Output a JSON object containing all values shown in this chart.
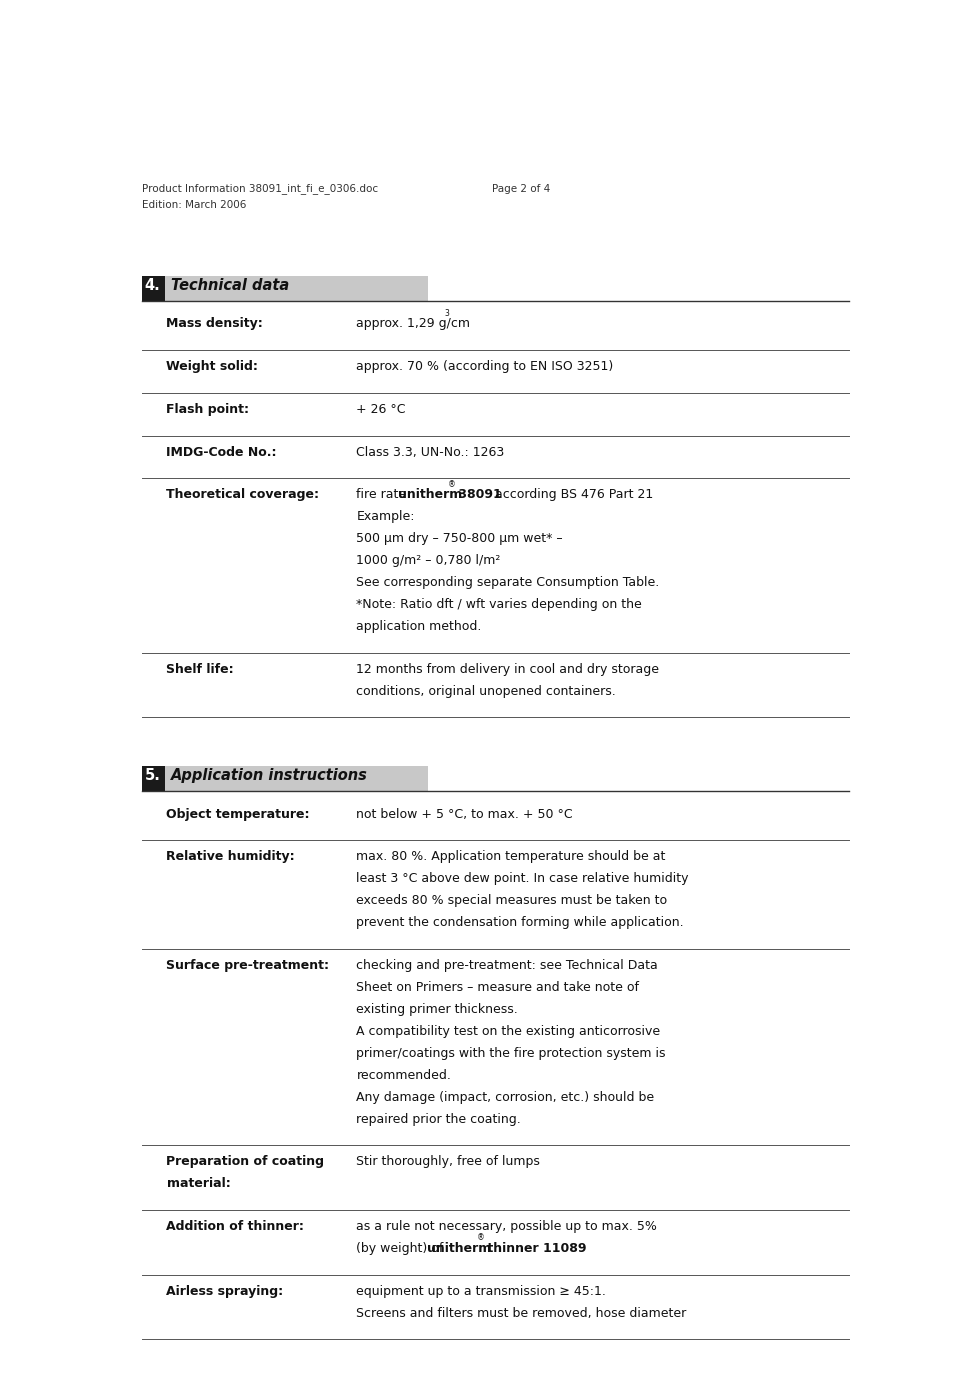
{
  "background_color": "#ffffff",
  "page_width": 9.6,
  "page_height": 13.88,
  "header_left_line1": "Product Information 38091_int_fi_e_0306.doc",
  "header_left_line2": "Edition: March 2006",
  "header_right": "Page 2 of 4",
  "section4_number": "4.",
  "section4_title": "Technical data",
  "section5_number": "5.",
  "section5_title": "Application instructions",
  "rows_section4": [
    {
      "label": "Mass density:",
      "value_multiline": [
        [
          {
            "text": "approx. 1,29 g/cm",
            "bold": false,
            "sup": false
          },
          {
            "text": "3",
            "bold": false,
            "sup": true
          }
        ]
      ]
    },
    {
      "label": "Weight solid:",
      "value_multiline": [
        [
          {
            "text": "approx. 70 % (according to EN ISO 3251)",
            "bold": false,
            "sup": false
          }
        ]
      ]
    },
    {
      "label": "Flash point:",
      "value_multiline": [
        [
          {
            "text": "+ 26 °C",
            "bold": false,
            "sup": false
          }
        ]
      ]
    },
    {
      "label": "IMDG-Code No.:",
      "value_multiline": [
        [
          {
            "text": "Class 3.3, UN-No.: 1263",
            "bold": false,
            "sup": false
          }
        ]
      ]
    },
    {
      "label": "Theoretical coverage:",
      "value_multiline": [
        [
          {
            "text": "fire rate ",
            "bold": false,
            "sup": false
          },
          {
            "text": "unitherm",
            "bold": true,
            "sup": false
          },
          {
            "text": "®",
            "bold": false,
            "sup": true
          },
          {
            "text": " 38091",
            "bold": true,
            "sup": false
          },
          {
            "text": " according BS 476 Part 21",
            "bold": false,
            "sup": false
          }
        ],
        [
          {
            "text": "Example:",
            "bold": false,
            "sup": false
          }
        ],
        [
          {
            "text": "500 μm dry – 750-800 μm wet* –",
            "bold": false,
            "sup": false
          }
        ],
        [
          {
            "text": "1000 g/m² – 0,780 l/m²",
            "bold": false,
            "sup": false
          }
        ],
        [
          {
            "text": "See corresponding separate Consumption Table.",
            "bold": false,
            "sup": false
          }
        ],
        [
          {
            "text": "*Note: Ratio dft / wft varies depending on the",
            "bold": false,
            "sup": false
          }
        ],
        [
          {
            "text": "application method.",
            "bold": false,
            "sup": false
          }
        ]
      ]
    },
    {
      "label": "Shelf life:",
      "value_multiline": [
        [
          {
            "text": "12 months from delivery in cool and dry storage",
            "bold": false,
            "sup": false
          }
        ],
        [
          {
            "text": "conditions, original unopened containers.",
            "bold": false,
            "sup": false
          }
        ]
      ]
    }
  ],
  "rows_section5": [
    {
      "label": "Object temperature:",
      "value_multiline": [
        [
          {
            "text": "not below + 5 °C, to max. + 50 °C",
            "bold": false,
            "sup": false
          }
        ]
      ]
    },
    {
      "label": "Relative humidity:",
      "value_multiline": [
        [
          {
            "text": "max. 80 %. Application temperature should be at",
            "bold": false,
            "sup": false
          }
        ],
        [
          {
            "text": "least 3 °C above dew point. In case relative humidity",
            "bold": false,
            "sup": false
          }
        ],
        [
          {
            "text": "exceeds 80 % special measures must be taken to",
            "bold": false,
            "sup": false
          }
        ],
        [
          {
            "text": "prevent the condensation forming while application.",
            "bold": false,
            "sup": false
          }
        ]
      ]
    },
    {
      "label": "Surface pre-treatment:",
      "value_multiline": [
        [
          {
            "text": "checking and pre-treatment: see Technical Data",
            "bold": false,
            "sup": false
          }
        ],
        [
          {
            "text": "Sheet on Primers – measure and take note of",
            "bold": false,
            "sup": false
          }
        ],
        [
          {
            "text": "existing primer thickness.",
            "bold": false,
            "sup": false
          }
        ],
        [
          {
            "text": "A compatibility test on the existing anticorrosive",
            "bold": false,
            "sup": false
          }
        ],
        [
          {
            "text": "primer/coatings with the fire protection system is",
            "bold": false,
            "sup": false
          }
        ],
        [
          {
            "text": "recommended.",
            "bold": false,
            "sup": false
          }
        ],
        [
          {
            "text": "Any damage (impact, corrosion, etc.) should be",
            "bold": false,
            "sup": false
          }
        ],
        [
          {
            "text": "repaired prior the coating.",
            "bold": false,
            "sup": false
          }
        ]
      ]
    },
    {
      "label": "Preparation of coating\nmaterial:",
      "value_multiline": [
        [
          {
            "text": "Stir thoroughly, free of lumps",
            "bold": false,
            "sup": false
          }
        ]
      ]
    },
    {
      "label": "Addition of thinner:",
      "value_multiline": [
        [
          {
            "text": "as a rule not necessary, possible up to max. 5%",
            "bold": false,
            "sup": false
          }
        ],
        [
          {
            "text": "(by weight) of ",
            "bold": false,
            "sup": false
          },
          {
            "text": "unitherm",
            "bold": true,
            "sup": false
          },
          {
            "text": "®",
            "bold": false,
            "sup": true
          },
          {
            "text": " thinner 11089",
            "bold": true,
            "sup": false
          }
        ]
      ]
    },
    {
      "label": "Airless spraying:",
      "value_multiline": [
        [
          {
            "text": "equipment up to a transmission ≥ 45:1.",
            "bold": false,
            "sup": false
          }
        ],
        [
          {
            "text": "Screens and filters must be removed, hose diameter",
            "bold": false,
            "sup": false
          }
        ]
      ]
    }
  ]
}
